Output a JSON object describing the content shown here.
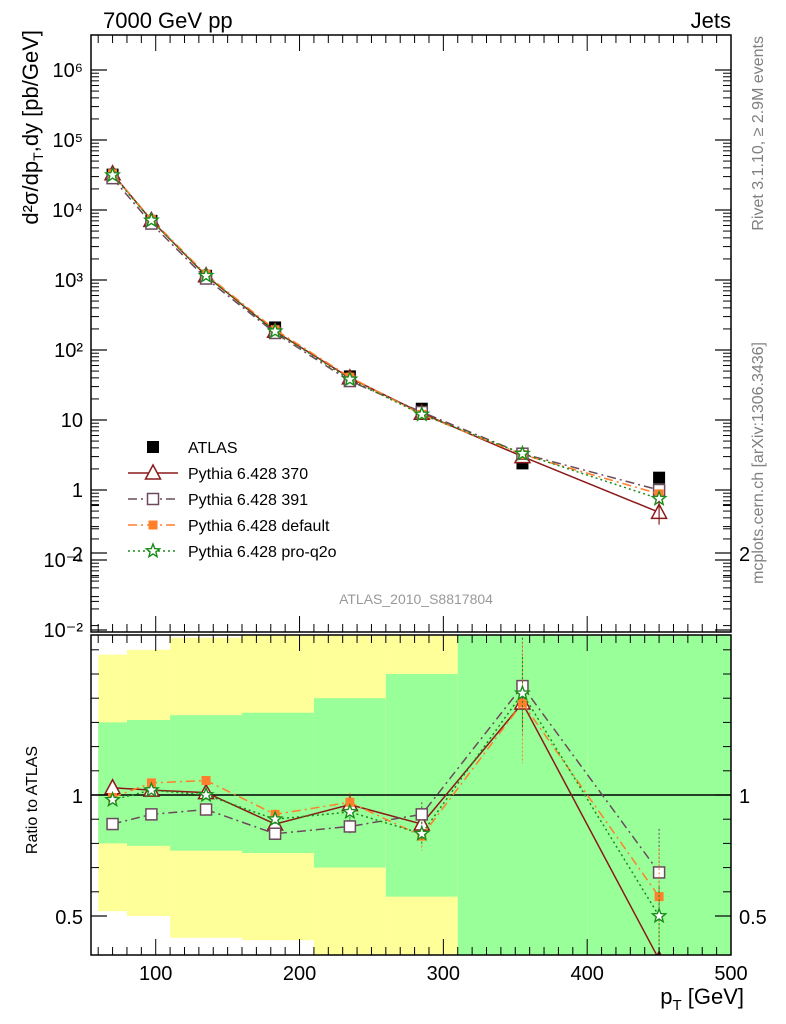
{
  "header": {
    "left_label": "7000 GeV pp",
    "right_label": "Jets"
  },
  "side_labels": {
    "top": "Rivet 3.1.10, ≥ 2.9M events",
    "bottom": "mcplots.cern.ch [arXiv:1306.3436]"
  },
  "analysis_id": "ATLAS_2010_S8817804",
  "colors": {
    "data": "#000000",
    "p370": "#8b1a1a",
    "p391": "#6b4a5c",
    "pdefault": "#ff7f2a",
    "pq2o": "#1a8c1a",
    "band_yellow": "#ffff99",
    "band_green": "#99ff99"
  },
  "chart_data": [
    {
      "type": "scatter",
      "panel": "main",
      "title": "",
      "ylabel": "d²σ/dp_T,dy [pb/GeV]",
      "yscale": "log",
      "ylim": [
        0.01,
        3000000
      ],
      "xlim": [
        55,
        500
      ],
      "y_tick_labels": [
        "10⁻²",
        "10⁻¹",
        "1",
        "10",
        "10²",
        "10³",
        "10⁴",
        "10⁵",
        "10⁶"
      ],
      "x": [
        70,
        97,
        135,
        183,
        235,
        285,
        355,
        450
      ],
      "series": [
        {
          "name": "ATLAS",
          "key": "data",
          "values": [
            32000,
            7000,
            1150,
            210,
            42,
            14.5,
            2.4,
            1.5
          ]
        },
        {
          "name": "Pythia 6.428 370",
          "key": "p370",
          "values": [
            33000,
            7100,
            1150,
            185,
            40,
            12.5,
            3.0,
            0.48
          ]
        },
        {
          "name": "Pythia 6.428 391",
          "key": "p391",
          "values": [
            28500,
            6400,
            1050,
            175,
            36,
            13,
            3.3,
            1.0
          ]
        },
        {
          "name": "Pythia 6.428 default",
          "key": "pdefault",
          "values": [
            33000,
            7300,
            1200,
            195,
            41,
            12,
            3.2,
            0.88
          ]
        },
        {
          "name": "Pythia 6.428 pro-q2o",
          "key": "pq2o",
          "values": [
            31500,
            7100,
            1150,
            185,
            38,
            12,
            3.3,
            0.75
          ]
        }
      ]
    },
    {
      "type": "scatter",
      "panel": "ratio",
      "ylabel": "Ratio to ATLAS",
      "xlabel": "p_T [GeV]",
      "xlim": [
        55,
        500
      ],
      "ylim": [
        0.4,
        2.3
      ],
      "y_ticks": [
        0.5,
        1,
        2
      ],
      "x_ticks": [
        100,
        200,
        300,
        400,
        500
      ],
      "bins": [
        {
          "lo": 60,
          "hi": 80,
          "yellow": [
            0.52,
            1.58
          ],
          "green": [
            0.8,
            1.3
          ]
        },
        {
          "lo": 80,
          "hi": 110,
          "yellow": [
            0.5,
            1.6
          ],
          "green": [
            0.79,
            1.31
          ]
        },
        {
          "lo": 110,
          "hi": 160,
          "yellow": [
            0.41,
            1.65
          ],
          "green": [
            0.77,
            1.33
          ]
        },
        {
          "lo": 160,
          "hi": 210,
          "yellow": [
            0.4,
            1.66
          ],
          "green": [
            0.76,
            1.34
          ]
        },
        {
          "lo": 210,
          "hi": 260,
          "yellow": [
            0.3,
            1.78
          ],
          "green": [
            0.7,
            1.4
          ]
        },
        {
          "lo": 260,
          "hi": 310,
          "yellow": [
            0.2,
            1.88
          ],
          "green": [
            0.58,
            1.5
          ]
        },
        {
          "lo": 310,
          "hi": 400,
          "yellow": [
            0.3,
            2.3
          ],
          "green": [
            0.3,
            1.72
          ]
        },
        {
          "lo": 400,
          "hi": 500,
          "yellow": [
            0.3,
            2.3
          ],
          "green": [
            0.3,
            1.85
          ]
        }
      ],
      "x": [
        70,
        97,
        135,
        183,
        235,
        285,
        355,
        450
      ],
      "series": [
        {
          "name": "Pythia 6.428 370",
          "key": "p370",
          "values": [
            1.03,
            1.02,
            1.01,
            0.88,
            0.96,
            0.88,
            1.38,
            0.32
          ],
          "err": [
            0.01,
            0.01,
            0.01,
            0.02,
            0.03,
            0.04,
            0.1,
            0.05
          ]
        },
        {
          "name": "Pythia 6.428 391",
          "key": "p391",
          "values": [
            0.88,
            0.92,
            0.94,
            0.84,
            0.87,
            0.92,
            1.45,
            0.68
          ],
          "err": [
            0.01,
            0.01,
            0.01,
            0.02,
            0.03,
            0.05,
            0.2,
            0.18
          ]
        },
        {
          "name": "Pythia 6.428 default",
          "key": "pdefault",
          "values": [
            0.99,
            1.05,
            1.06,
            0.92,
            0.97,
            0.83,
            1.38,
            0.58
          ],
          "err": [
            0.01,
            0.01,
            0.01,
            0.02,
            0.04,
            0.06,
            0.25,
            0.2
          ]
        },
        {
          "name": "Pythia 6.428 pro-q2o",
          "key": "pq2o",
          "values": [
            0.98,
            1.02,
            1.0,
            0.9,
            0.93,
            0.84,
            1.42,
            0.5
          ],
          "err": [
            0.01,
            0.01,
            0.01,
            0.02,
            0.03,
            0.05,
            0.15,
            0.12
          ]
        }
      ]
    }
  ]
}
